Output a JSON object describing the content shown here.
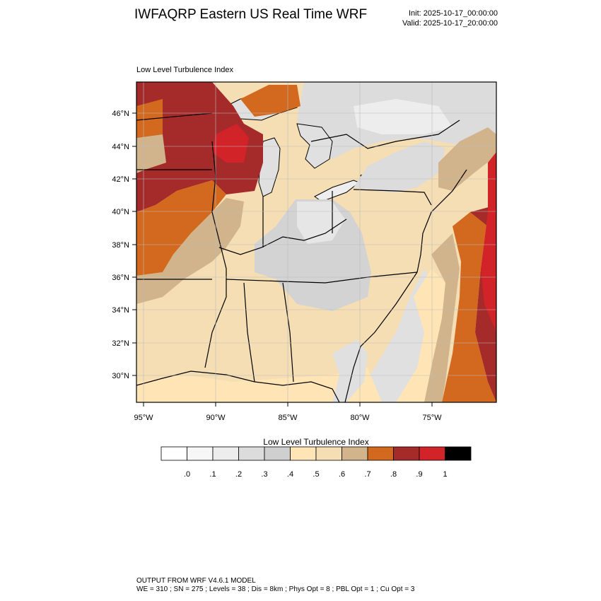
{
  "header": {
    "title": "IWFAQRP Eastern US Real Time WRF",
    "init": "Init: 2025-10-17_00:00:00",
    "valid": "Valid: 2025-10-17_20:00:00"
  },
  "map": {
    "field_label": "Low Level Turbulence Index",
    "lat_ticks": [
      "46°N",
      "44°N",
      "42°N",
      "40°N",
      "38°N",
      "36°N",
      "34°N",
      "32°N",
      "30°N"
    ],
    "lon_ticks": [
      "95°W",
      "90°W",
      "85°W",
      "80°W",
      "75°W"
    ],
    "land_color": "#f5deb3",
    "water_color": "#e0e0e0",
    "boundary_color": "#000000"
  },
  "colorbar": {
    "title": "Low Level Turbulence Index",
    "colors": [
      "#ffffff",
      "#f7f7f7",
      "#ededed",
      "#dcdcdc",
      "#cfcfcf",
      "#ffe4b5",
      "#f5deb3",
      "#d2b48c",
      "#d2691e",
      "#a52a2a",
      "#d22328",
      "#000000"
    ],
    "tick_labels": [
      ".0",
      ".1",
      ".2",
      ".3",
      ".4",
      ".5",
      ".6",
      ".7",
      ".8",
      ".9",
      "1"
    ]
  },
  "footer": {
    "line1": "OUTPUT FROM WRF V4.6.1 MODEL",
    "line2": "WE = 310 ; SN = 275 ; Levels = 38 ; Dis = 8km ; Phys Opt = 8 ; PBL Opt = 1 ; Cu Opt = 3"
  }
}
